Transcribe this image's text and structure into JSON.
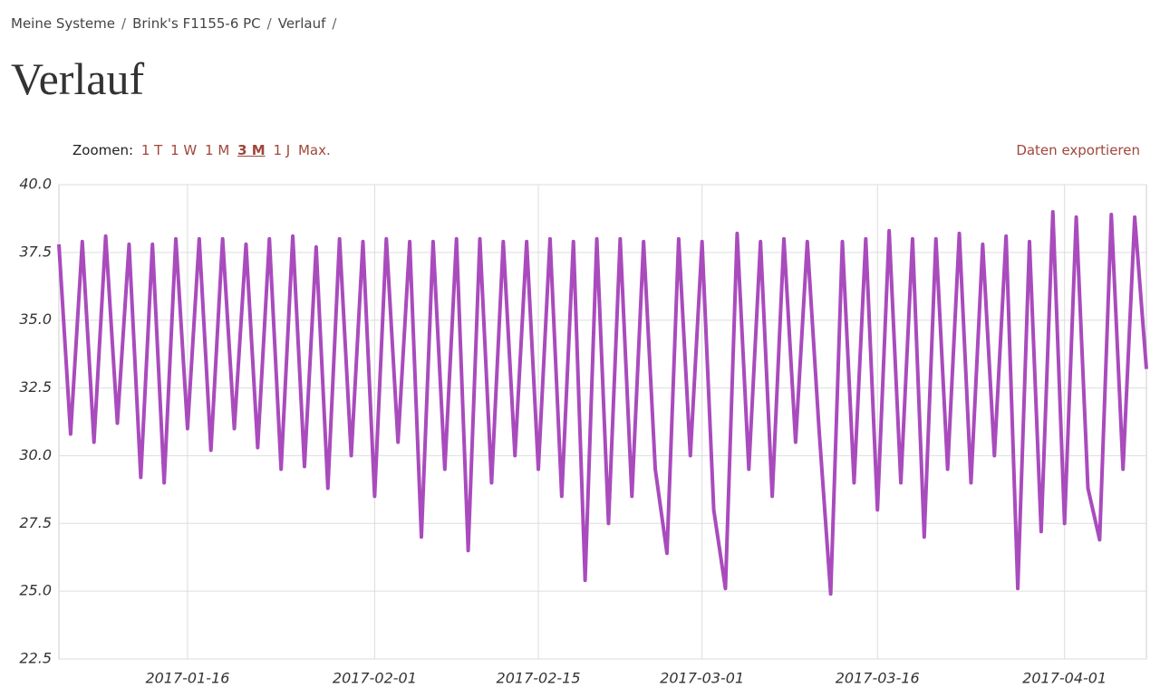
{
  "breadcrumbs": [
    "Meine Systeme",
    "Brink's F1155-6 PC",
    "Verlauf"
  ],
  "title": "Verlauf",
  "zoom": {
    "label": "Zoomen:",
    "options": [
      "1 T",
      "1 W",
      "1 M",
      "3 M",
      "1 J",
      "Max."
    ]
  },
  "export": "Daten exportieren",
  "chart_data": {
    "type": "line",
    "color": "#a94bbd",
    "grid": true,
    "xlim": [
      "2017-01-05",
      "2017-04-08"
    ],
    "xticks": [
      "2017-01-16",
      "2017-02-01",
      "2017-02-15",
      "2017-03-01",
      "2017-03-16",
      "2017-04-01"
    ],
    "ylim": [
      22.5,
      40
    ],
    "yticks": [
      {
        "value": 40,
        "label": "40.0"
      },
      37.5,
      {
        "value": 35,
        "label": "35.0"
      },
      32.5,
      {
        "value": 30,
        "label": "30.0"
      },
      27.5,
      {
        "value": 25,
        "label": "25.0"
      },
      22.5
    ],
    "x": [
      "2017-01-05",
      "2017-01-06",
      "2017-01-07",
      "2017-01-08",
      "2017-01-09",
      "2017-01-10",
      "2017-01-11",
      "2017-01-12",
      "2017-01-13",
      "2017-01-14",
      "2017-01-15",
      "2017-01-16",
      "2017-01-17",
      "2017-01-18",
      "2017-01-19",
      "2017-01-20",
      "2017-01-21",
      "2017-01-22",
      "2017-01-23",
      "2017-01-24",
      "2017-01-25",
      "2017-01-26",
      "2017-01-27",
      "2017-01-28",
      "2017-01-29",
      "2017-01-30",
      "2017-01-31",
      "2017-02-01",
      "2017-02-02",
      "2017-02-03",
      "2017-02-04",
      "2017-02-05",
      "2017-02-06",
      "2017-02-07",
      "2017-02-08",
      "2017-02-09",
      "2017-02-10",
      "2017-02-11",
      "2017-02-12",
      "2017-02-13",
      "2017-02-14",
      "2017-02-15",
      "2017-02-16",
      "2017-02-17",
      "2017-02-18",
      "2017-02-19",
      "2017-02-20",
      "2017-02-21",
      "2017-02-22",
      "2017-02-23",
      "2017-02-24",
      "2017-02-25",
      "2017-02-26",
      "2017-02-27",
      "2017-02-28",
      "2017-03-01",
      "2017-03-02",
      "2017-03-03",
      "2017-03-04",
      "2017-03-05",
      "2017-03-06",
      "2017-03-07",
      "2017-03-08",
      "2017-03-09",
      "2017-03-10",
      "2017-03-11",
      "2017-03-12",
      "2017-03-13",
      "2017-03-14",
      "2017-03-15",
      "2017-03-16",
      "2017-03-17",
      "2017-03-18",
      "2017-03-19",
      "2017-03-20",
      "2017-03-21",
      "2017-03-22",
      "2017-03-23",
      "2017-03-24",
      "2017-03-25",
      "2017-03-26",
      "2017-03-27",
      "2017-03-28",
      "2017-03-29",
      "2017-03-30",
      "2017-03-31",
      "2017-04-01",
      "2017-04-02",
      "2017-04-03",
      "2017-04-04",
      "2017-04-05",
      "2017-04-06",
      "2017-04-07",
      "2017-04-08"
    ],
    "values": [
      37.8,
      30.8,
      37.9,
      30.5,
      38.1,
      31.2,
      37.8,
      29.2,
      37.8,
      29.0,
      38.0,
      31.0,
      38.0,
      30.2,
      38.0,
      31.0,
      37.8,
      30.3,
      38.0,
      29.5,
      38.1,
      29.6,
      37.7,
      28.8,
      38.0,
      30.0,
      37.9,
      28.5,
      38.0,
      30.5,
      37.9,
      27.0,
      37.9,
      29.5,
      38.0,
      26.5,
      38.0,
      29.0,
      37.9,
      30.0,
      37.9,
      29.5,
      38.0,
      28.5,
      37.9,
      25.4,
      38.0,
      27.5,
      38.0,
      28.5,
      37.9,
      29.5,
      26.4,
      38.0,
      30.0,
      37.9,
      28.0,
      25.1,
      38.2,
      29.5,
      37.9,
      28.5,
      38.0,
      30.5,
      37.9,
      31.0,
      24.9,
      37.9,
      29.0,
      38.0,
      28.0,
      38.3,
      29.0,
      38.0,
      27.0,
      38.0,
      29.5,
      38.2,
      29.0,
      37.8,
      30.0,
      38.1,
      25.1,
      37.9,
      27.2,
      39.0,
      27.5,
      38.8,
      28.8,
      26.9,
      38.9,
      29.5,
      38.8,
      33.2
    ]
  }
}
